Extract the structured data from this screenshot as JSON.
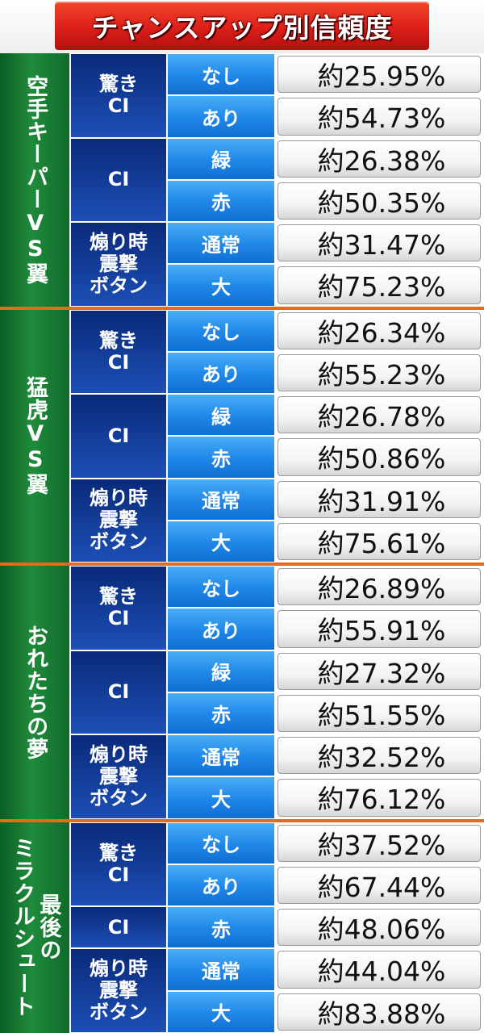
{
  "title": "チャンスアップ別信頼度",
  "sections": [
    {
      "name": "空手キーパーVS翼",
      "rows": [
        {
          "sub": "驚き\nCI",
          "option": "なし",
          "value": "約25.95%"
        },
        {
          "sub": "驚き\nCI",
          "option": "あり",
          "value": "約54.73%"
        },
        {
          "sub": "CI",
          "option": "緑",
          "value": "約26.38%"
        },
        {
          "sub": "CI",
          "option": "赤",
          "value": "約50.35%"
        },
        {
          "sub": "煽り時\n震撃\nボタン",
          "option": "通常",
          "value": "約31.47%"
        },
        {
          "sub": "煽り時\n震撃\nボタン",
          "option": "大",
          "value": "約75.23%"
        }
      ]
    },
    {
      "name": "猛虎VS翼",
      "rows": [
        {
          "sub": "驚き\nCI",
          "option": "なし",
          "value": "約26.34%"
        },
        {
          "sub": "驚き\nCI",
          "option": "あり",
          "value": "約55.23%"
        },
        {
          "sub": "CI",
          "option": "緑",
          "value": "約26.78%"
        },
        {
          "sub": "CI",
          "option": "赤",
          "value": "約50.86%"
        },
        {
          "sub": "煽り時\n震撃\nボタン",
          "option": "通常",
          "value": "約31.91%"
        },
        {
          "sub": "煽り時\n震撃\nボタン",
          "option": "大",
          "value": "約75.61%"
        }
      ]
    },
    {
      "name": "おれたちの夢",
      "rows": [
        {
          "sub": "驚き\nCI",
          "option": "なし",
          "value": "約26.89%"
        },
        {
          "sub": "驚き\nCI",
          "option": "あり",
          "value": "約55.91%"
        },
        {
          "sub": "CI",
          "option": "緑",
          "value": "約27.32%"
        },
        {
          "sub": "CI",
          "option": "赤",
          "value": "約51.55%"
        },
        {
          "sub": "煽り時\n震撃\nボタン",
          "option": "通常",
          "value": "約32.52%"
        },
        {
          "sub": "煽り時\n震撃\nボタン",
          "option": "大",
          "value": "約76.12%"
        }
      ]
    },
    {
      "name": "最後のミラクルシュート",
      "name_lines": [
        "最後の",
        "ミラクルシュート"
      ],
      "rows": [
        {
          "sub": "驚き\nCI",
          "option": "なし",
          "value": "約37.52%"
        },
        {
          "sub": "驚き\nCI",
          "option": "あり",
          "value": "約67.44%"
        },
        {
          "sub": "CI",
          "option": "赤",
          "value": "約48.06%"
        },
        {
          "sub": "煽り時\n震撃\nボタン",
          "option": "通常",
          "value": "約44.04%"
        },
        {
          "sub": "煽り時\n震撃\nボタン",
          "option": "大",
          "value": "約83.88%"
        }
      ]
    }
  ],
  "colors": {
    "title_red": "#dd1f1a",
    "section_green": "#1f8c3b",
    "sub_navy": "#1c4fb5",
    "option_blue": "#1f86e8",
    "separator_orange": "#e46b1b"
  }
}
